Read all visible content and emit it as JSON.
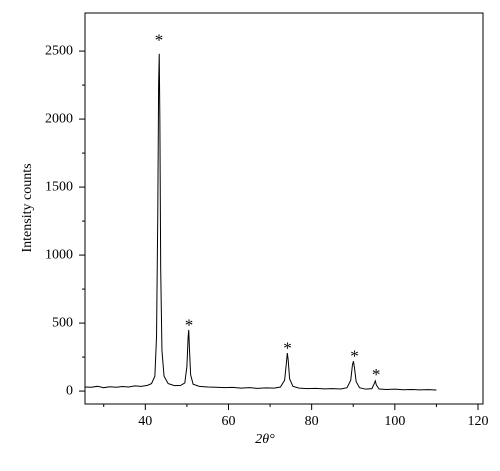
{
  "chart_data": {
    "type": "line",
    "x_label": "2θ°",
    "y_label": "Intensity counts",
    "x": [
      25.5,
      27,
      28.5,
      30,
      31.5,
      33,
      34.5,
      36,
      37.5,
      39,
      40.5,
      41.5,
      42.3,
      42.7,
      43.0,
      43.2,
      43.35,
      43.5,
      43.7,
      44.0,
      44.5,
      45.5,
      47,
      48.5,
      49.5,
      50.0,
      50.3,
      50.45,
      50.6,
      50.9,
      51.5,
      53,
      55,
      57,
      59,
      61,
      63,
      65,
      67,
      69,
      71,
      72.5,
      73.5,
      73.9,
      74.15,
      74.35,
      74.7,
      75.5,
      77,
      79,
      81,
      83,
      85,
      87,
      88.5,
      89.4,
      89.8,
      90.05,
      90.3,
      90.7,
      91.5,
      93,
      94.5,
      95.05,
      95.3,
      95.55,
      96.2,
      98,
      100,
      102,
      104,
      106,
      108,
      110
    ],
    "series": [
      {
        "color": "#000000",
        "values": [
          30,
          28,
          35,
          25,
          32,
          28,
          34,
          30,
          38,
          35,
          42,
          55,
          110,
          400,
          1300,
          2250,
          2480,
          2000,
          900,
          300,
          110,
          55,
          40,
          42,
          60,
          180,
          400,
          450,
          320,
          120,
          50,
          35,
          30,
          28,
          25,
          27,
          22,
          25,
          20,
          24,
          22,
          30,
          80,
          200,
          280,
          230,
          90,
          35,
          22,
          18,
          20,
          16,
          18,
          15,
          25,
          80,
          190,
          220,
          170,
          70,
          25,
          14,
          18,
          55,
          75,
          45,
          15,
          12,
          14,
          10,
          12,
          9,
          11,
          8
        ]
      }
    ],
    "annotations": [
      {
        "text": "*",
        "x": 43.3,
        "y": 2600
      },
      {
        "text": "*",
        "x": 50.5,
        "y": 505
      },
      {
        "text": "*",
        "x": 74.2,
        "y": 335
      },
      {
        "text": "*",
        "x": 90.3,
        "y": 275
      },
      {
        "text": "*",
        "x": 95.5,
        "y": 140
      }
    ],
    "xlim": [
      25.5,
      121.2
    ],
    "ylim": [
      -95,
      2780
    ],
    "xticks": [
      40,
      60,
      80,
      100,
      120
    ],
    "xticks_minor": [
      30,
      50,
      70,
      90,
      110
    ],
    "yticks": [
      0,
      500,
      1000,
      1500,
      2000,
      2500
    ],
    "yticks_minor": [
      250,
      750,
      1250,
      1750,
      2250
    ]
  }
}
